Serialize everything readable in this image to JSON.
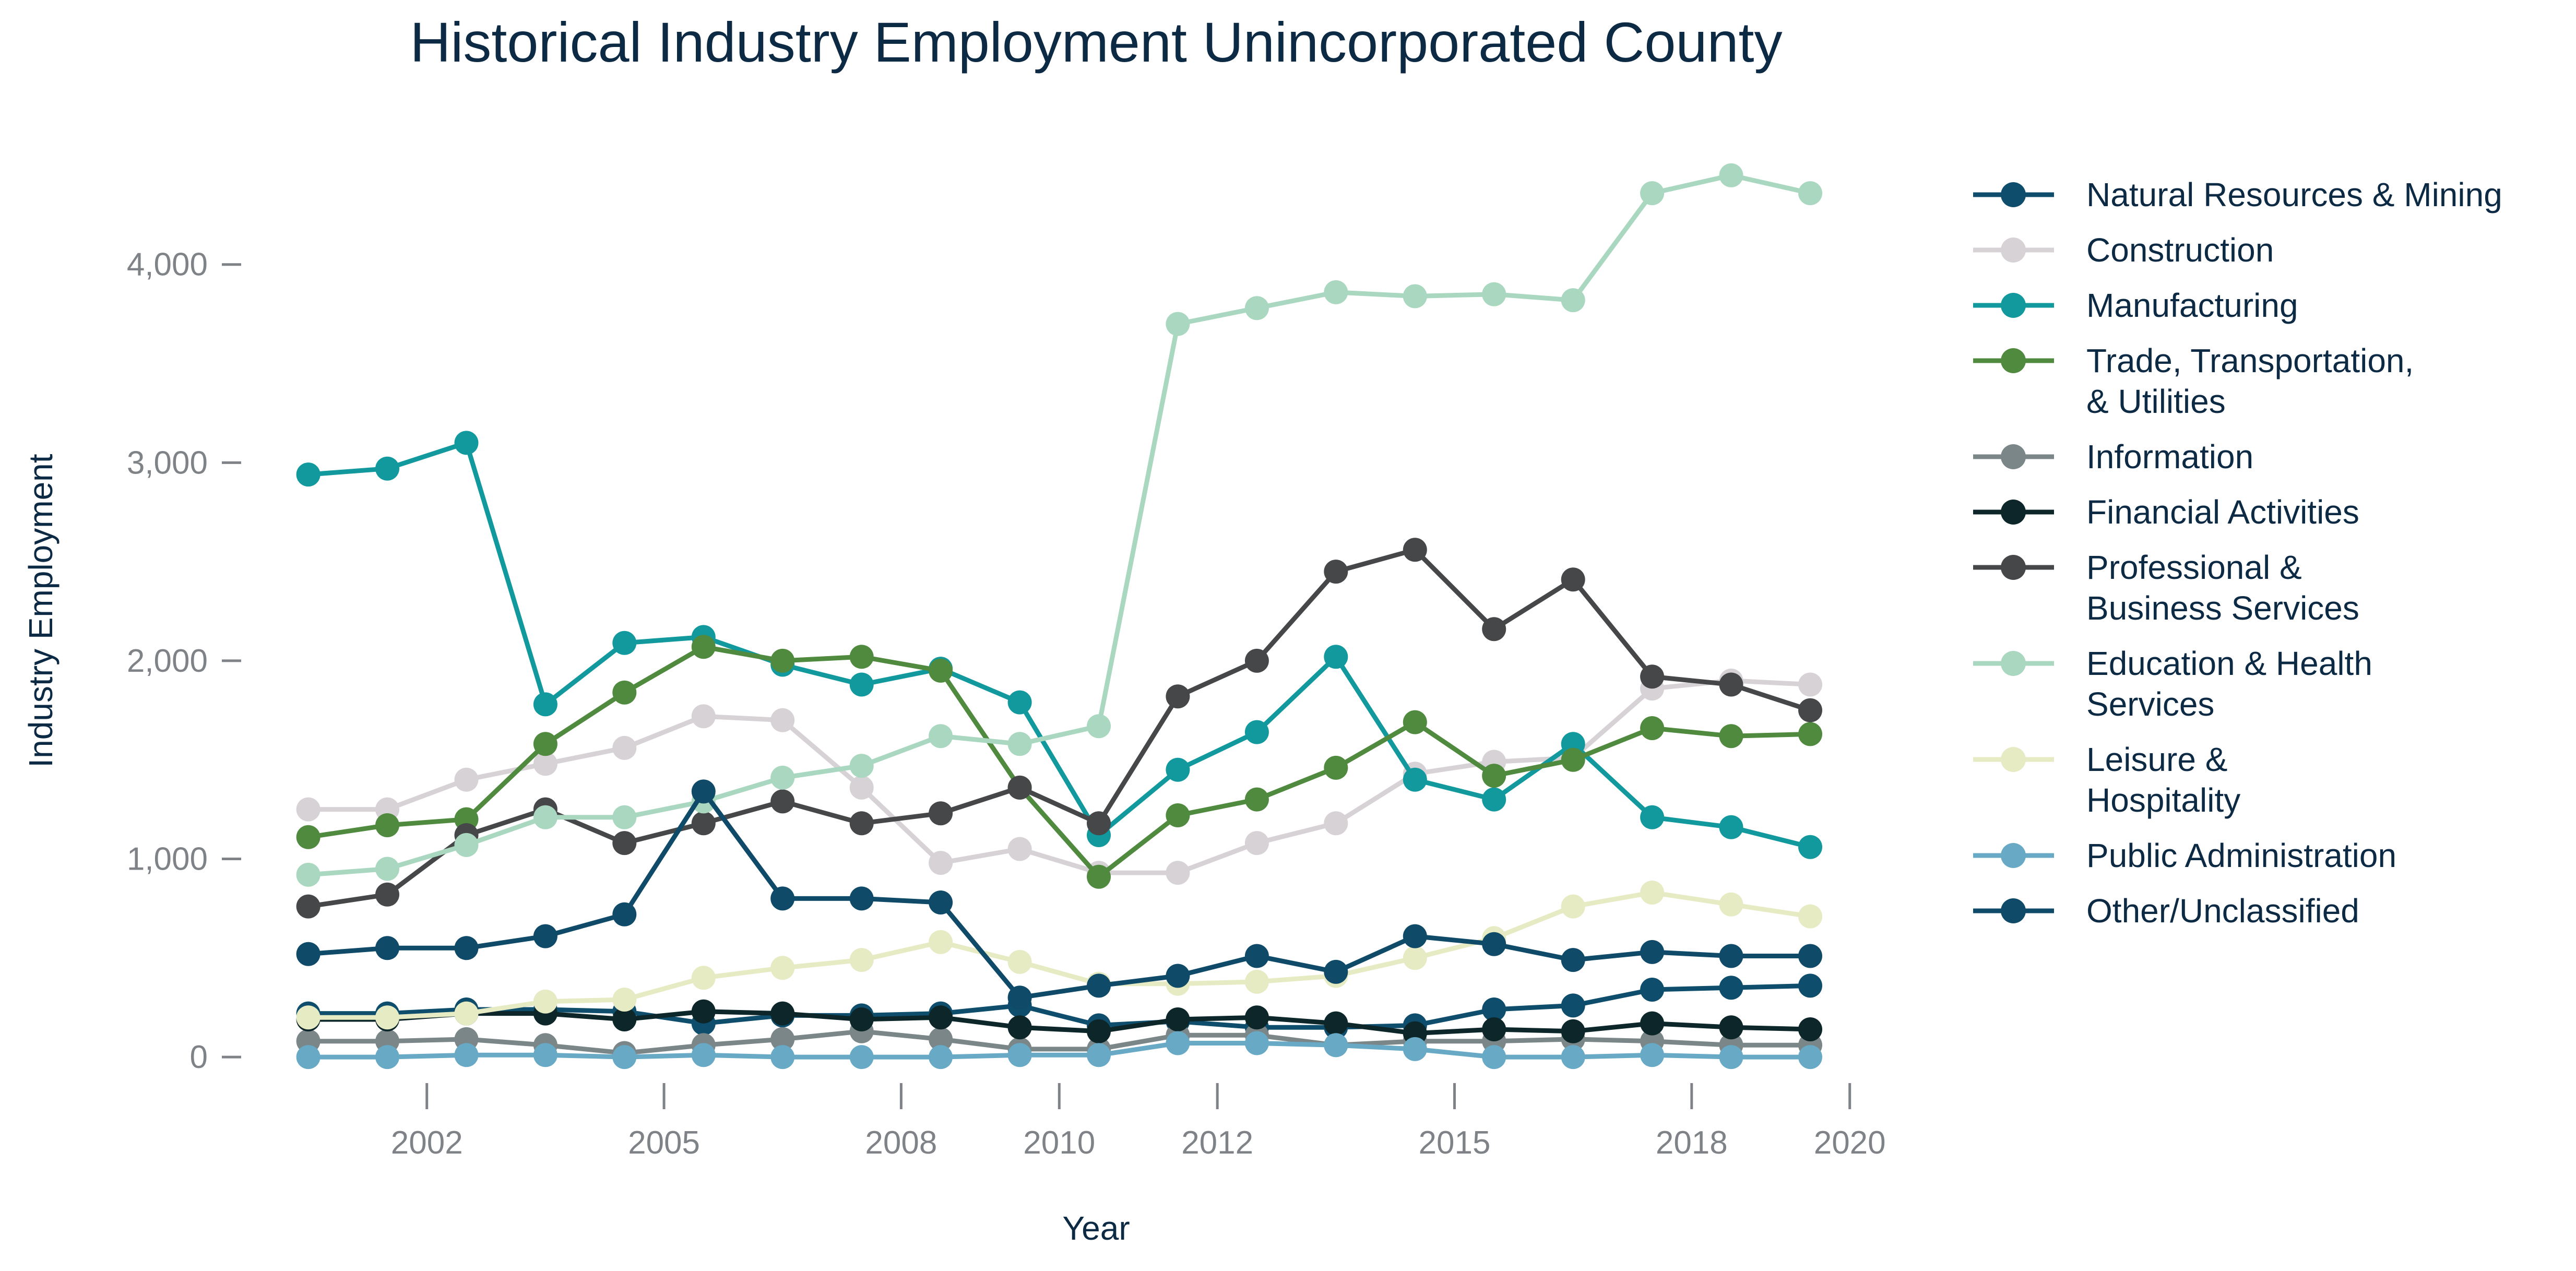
{
  "chart_data": {
    "type": "line",
    "title": "Historical Industry Employment Unincorporated County",
    "xlabel": "Year",
    "ylabel": "Industry Employment",
    "xlim": [
      2000.1,
      2020.9
    ],
    "ylim": [
      -250,
      4650
    ],
    "x_ticks": [
      2002,
      2005,
      2008,
      2010,
      2012,
      2015,
      2018,
      2020
    ],
    "x_tick_labels": [
      "2002",
      "2005",
      "2008",
      "2010",
      "2012",
      "2015",
      "2018",
      "2020"
    ],
    "y_ticks": [
      0,
      1000,
      2000,
      3000,
      4000
    ],
    "y_tick_labels": [
      "0",
      "1,000",
      "2,000",
      "3,000",
      "4,000"
    ],
    "grid": false,
    "legend_position": "right",
    "x": [
      2000.5,
      2001.5,
      2002.5,
      2003.5,
      2004.5,
      2005.5,
      2006.5,
      2007.5,
      2008.5,
      2009.5,
      2010.5,
      2011.5,
      2012.5,
      2013.5,
      2014.5,
      2015.5,
      2016.5,
      2017.5,
      2018.5,
      2019.5
    ],
    "series": [
      {
        "name": "Natural Resources & Mining",
        "color": "#0e4d6b",
        "values": [
          220,
          220,
          240,
          240,
          230,
          170,
          210,
          210,
          220,
          260,
          160,
          180,
          150,
          150,
          160,
          240,
          260,
          340,
          350,
          360
        ]
      },
      {
        "name": "Construction",
        "color": "#d7d2d6",
        "values": [
          1250,
          1250,
          1400,
          1480,
          1560,
          1720,
          1700,
          1360,
          980,
          1050,
          930,
          930,
          1080,
          1180,
          1430,
          1490,
          1510,
          1860,
          1900,
          1880
        ]
      },
      {
        "name": "Manufacturing",
        "color": "#12999d",
        "values": [
          2940,
          2970,
          3100,
          1780,
          2090,
          2120,
          1980,
          1880,
          1960,
          1790,
          1120,
          1450,
          1640,
          2020,
          1400,
          1300,
          1580,
          1210,
          1160,
          1060
        ]
      },
      {
        "name": "Trade, Transportation, & Utilities",
        "label_lines": [
          "Trade, Transportation,",
          "& Utilities"
        ],
        "color": "#4f8a3e",
        "values": [
          1110,
          1170,
          1200,
          1580,
          1840,
          2070,
          2000,
          2020,
          1950,
          1360,
          910,
          1220,
          1300,
          1460,
          1690,
          1420,
          1500,
          1660,
          1620,
          1630
        ]
      },
      {
        "name": "Information",
        "color": "#7b8689",
        "values": [
          80,
          80,
          90,
          60,
          20,
          60,
          90,
          130,
          90,
          40,
          40,
          110,
          110,
          60,
          80,
          80,
          90,
          80,
          60,
          60
        ]
      },
      {
        "name": "Financial Activities",
        "color": "#0c2629",
        "values": [
          190,
          190,
          220,
          220,
          190,
          230,
          220,
          190,
          200,
          150,
          130,
          190,
          200,
          170,
          120,
          140,
          130,
          170,
          150,
          140
        ]
      },
      {
        "name": "Professional & Business Services",
        "label_lines": [
          "Professional &",
          "Business Services"
        ],
        "color": "#454749",
        "values": [
          760,
          820,
          1120,
          1250,
          1080,
          1180,
          1290,
          1180,
          1230,
          1360,
          1180,
          1820,
          2000,
          2450,
          2560,
          2160,
          2410,
          1920,
          1880,
          1750
        ]
      },
      {
        "name": "Education & Health Services",
        "label_lines": [
          "Education & Health",
          "Services"
        ],
        "color": "#a9d7bf",
        "values": [
          920,
          950,
          1070,
          1210,
          1210,
          1290,
          1410,
          1470,
          1620,
          1580,
          1670,
          3700,
          3780,
          3860,
          3840,
          3850,
          3820,
          4360,
          4450,
          4360
        ]
      },
      {
        "name": "Leisure & Hospitality",
        "label_lines": [
          "Leisure &",
          "Hospitality"
        ],
        "color": "#e7ebc3",
        "values": [
          200,
          200,
          220,
          280,
          290,
          400,
          450,
          490,
          580,
          480,
          370,
          370,
          380,
          410,
          500,
          600,
          760,
          830,
          770,
          710
        ]
      },
      {
        "name": "Public Administration",
        "color": "#68aac5",
        "values": [
          0,
          0,
          10,
          10,
          0,
          10,
          0,
          0,
          0,
          10,
          10,
          70,
          70,
          60,
          40,
          0,
          0,
          10,
          0,
          0
        ]
      },
      {
        "name": "Other/Unclassified",
        "color": "#0f4a68",
        "values": [
          520,
          550,
          550,
          610,
          720,
          1340,
          800,
          800,
          780,
          300,
          360,
          410,
          510,
          430,
          610,
          570,
          490,
          530,
          510,
          510
        ]
      }
    ]
  }
}
